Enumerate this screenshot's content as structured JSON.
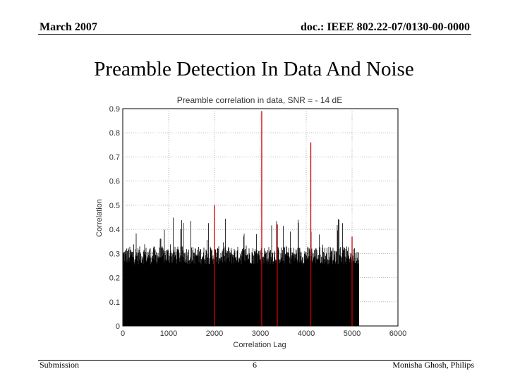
{
  "header": {
    "date": "March 2007",
    "doc_id": "doc.: IEEE 802.22-07/0130-00-0000"
  },
  "slide": {
    "title": "Preamble Detection In Data And Noise"
  },
  "footer": {
    "left": "Submission",
    "page": "6",
    "author": "Monisha Ghosh, Philips"
  },
  "chart_data": {
    "type": "line",
    "title": "Preamble correlation in data, SNR = - 14 dE",
    "xlabel": "Correlation Lag",
    "ylabel": "Correlation",
    "xlim": [
      0,
      6000
    ],
    "ylim": [
      0,
      0.9
    ],
    "xticks": [
      0,
      1000,
      2000,
      3000,
      4000,
      5000,
      6000
    ],
    "yticks": [
      0,
      0.1,
      0.2,
      0.3,
      0.4,
      0.5,
      0.6,
      0.7,
      0.8,
      0.9
    ],
    "grid": true,
    "series": [
      {
        "color": "#000000",
        "description": "noise correlation, dense band",
        "x_range": [
          0,
          5150
        ],
        "base_level": 0.3,
        "peak_level": 0.45
      },
      {
        "color": "#cc0000",
        "peaks": [
          {
            "x": 2000,
            "y": 0.5
          },
          {
            "x": 3030,
            "y": 0.89
          },
          {
            "x": 3370,
            "y": 0.42
          },
          {
            "x": 4100,
            "y": 0.76
          },
          {
            "x": 5000,
            "y": 0.37
          }
        ]
      }
    ]
  }
}
